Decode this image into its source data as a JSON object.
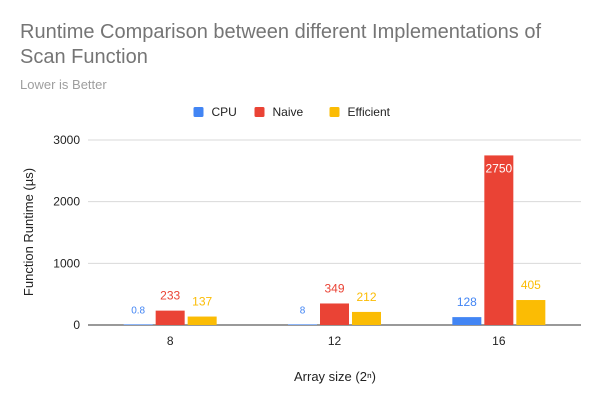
{
  "chart_data": {
    "type": "bar",
    "title_lines": [
      "Runtime Comparison between different Implementations of",
      "Scan Function"
    ],
    "subtitle": "Lower is Better",
    "xlabel": "Array size (2ⁿ)",
    "ylabel": "Function Runtime (µs)",
    "categories": [
      "8",
      "12",
      "16"
    ],
    "ylim": [
      0,
      3000
    ],
    "yticks": [
      "0",
      "1000",
      "2000",
      "3000"
    ],
    "grid": true,
    "legend_position": "top",
    "series": [
      {
        "name": "CPU",
        "color": "#4285f4",
        "values": [
          0.8,
          8,
          128
        ],
        "labels": [
          "0.8",
          "8",
          "128"
        ]
      },
      {
        "name": "Naive",
        "color": "#ea4335",
        "values": [
          233,
          349,
          2750
        ],
        "labels": [
          "233",
          "349",
          "2750"
        ]
      },
      {
        "name": "Efficient",
        "color": "#fbbc04",
        "values": [
          137,
          212,
          405
        ],
        "labels": [
          "137",
          "212",
          "405"
        ]
      }
    ]
  }
}
